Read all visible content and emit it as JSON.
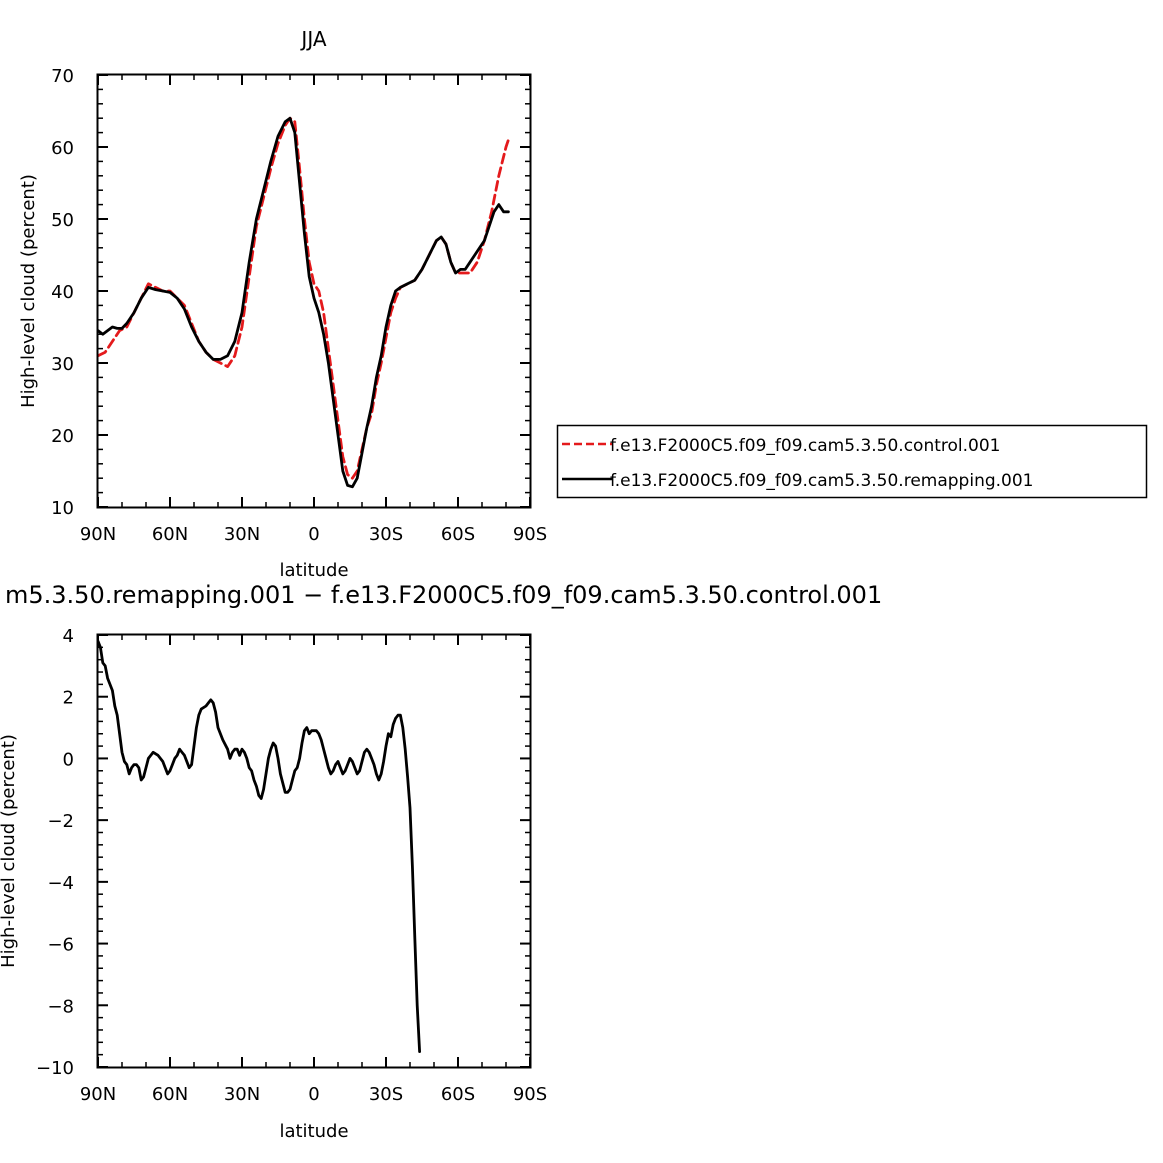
{
  "chart_data": [
    {
      "type": "line",
      "title": "JJA",
      "xlabel": "latitude",
      "ylabel": "High-level cloud (percent)",
      "xlim": [
        90,
        -90
      ],
      "ylim": [
        10,
        70
      ],
      "xticks": [
        90,
        60,
        30,
        0,
        -30,
        -60,
        -90
      ],
      "xtick_labels": [
        "90N",
        "60N",
        "30N",
        "0",
        "30S",
        "60S",
        "90S"
      ],
      "yticks": [
        10,
        20,
        30,
        40,
        50,
        60,
        70
      ],
      "ytick_labels": [
        "10",
        "20",
        "30",
        "40",
        "50",
        "60",
        "70"
      ],
      "legend_position": "right",
      "series": [
        {
          "name": "f.e13.F2000C5.f09_f09.cam5.3.50.control.001",
          "color": "#e41a1c",
          "dash": "dashed",
          "points": [
            [
              90,
              31
            ],
            [
              87,
              31.5
            ],
            [
              84,
              33
            ],
            [
              81,
              34.5
            ],
            [
              78,
              35
            ],
            [
              75,
              37
            ],
            [
              72,
              39
            ],
            [
              69,
              41
            ],
            [
              66,
              40.5
            ],
            [
              63,
              40
            ],
            [
              60,
              40
            ],
            [
              57,
              39
            ],
            [
              54,
              38
            ],
            [
              51,
              35.5
            ],
            [
              48,
              33
            ],
            [
              45,
              31.5
            ],
            [
              42,
              30.5
            ],
            [
              39,
              30
            ],
            [
              36,
              29.5
            ],
            [
              33,
              31
            ],
            [
              30,
              35
            ],
            [
              27,
              42
            ],
            [
              24,
              49
            ],
            [
              21,
              53
            ],
            [
              18,
              57
            ],
            [
              15,
              60.5
            ],
            [
              12,
              63
            ],
            [
              10,
              64
            ],
            [
              8,
              63.5
            ],
            [
              6,
              57
            ],
            [
              4,
              50
            ],
            [
              2,
              44
            ],
            [
              0,
              41
            ],
            [
              -2,
              40
            ],
            [
              -4,
              37
            ],
            [
              -6,
              32
            ],
            [
              -8,
              27
            ],
            [
              -10,
              22
            ],
            [
              -12,
              17
            ],
            [
              -14,
              14.5
            ],
            [
              -16,
              14
            ],
            [
              -18,
              15
            ],
            [
              -20,
              18
            ],
            [
              -22,
              21
            ],
            [
              -24,
              23
            ],
            [
              -26,
              27
            ],
            [
              -28,
              30
            ],
            [
              -30,
              33.5
            ],
            [
              -32,
              37
            ],
            [
              -34,
              39
            ],
            [
              -36,
              40.5
            ],
            [
              -39,
              41
            ],
            [
              -42,
              41.5
            ],
            [
              -45,
              43
            ],
            [
              -48,
              45
            ],
            [
              -51,
              47
            ],
            [
              -53,
              47.5
            ],
            [
              -55,
              46.5
            ],
            [
              -57,
              44
            ],
            [
              -59,
              42.5
            ],
            [
              -62,
              42.5
            ],
            [
              -65,
              42.5
            ],
            [
              -68,
              44
            ],
            [
              -71,
              47
            ],
            [
              -74,
              51
            ],
            [
              -77,
              56
            ],
            [
              -80,
              60
            ],
            [
              -81,
              61
            ]
          ]
        },
        {
          "name": "f.e13.F2000C5.f09_f09.cam5.3.50.remapping.001",
          "color": "#000000",
          "dash": "solid",
          "points": [
            [
              90,
              34.5
            ],
            [
              88,
              34
            ],
            [
              86,
              34.5
            ],
            [
              84,
              35
            ],
            [
              82,
              34.8
            ],
            [
              80,
              34.8
            ],
            [
              78,
              35.5
            ],
            [
              75,
              37
            ],
            [
              72,
              39
            ],
            [
              69,
              40.5
            ],
            [
              66,
              40.2
            ],
            [
              63,
              40
            ],
            [
              60,
              39.8
            ],
            [
              57,
              39
            ],
            [
              54,
              37.5
            ],
            [
              51,
              35
            ],
            [
              48,
              33
            ],
            [
              45,
              31.5
            ],
            [
              42,
              30.5
            ],
            [
              39,
              30.5
            ],
            [
              36,
              31
            ],
            [
              33,
              33
            ],
            [
              30,
              37
            ],
            [
              27,
              44
            ],
            [
              24,
              50
            ],
            [
              21,
              54
            ],
            [
              18,
              58
            ],
            [
              15,
              61.5
            ],
            [
              12,
              63.5
            ],
            [
              10,
              64
            ],
            [
              8,
              62
            ],
            [
              6,
              55
            ],
            [
              4,
              48
            ],
            [
              2,
              42
            ],
            [
              0,
              39
            ],
            [
              -2,
              37
            ],
            [
              -4,
              34
            ],
            [
              -6,
              30
            ],
            [
              -8,
              25
            ],
            [
              -10,
              20
            ],
            [
              -12,
              15
            ],
            [
              -14,
              13
            ],
            [
              -16,
              12.8
            ],
            [
              -18,
              14
            ],
            [
              -20,
              17.5
            ],
            [
              -22,
              21
            ],
            [
              -24,
              24
            ],
            [
              -26,
              28
            ],
            [
              -28,
              31
            ],
            [
              -30,
              35
            ],
            [
              -32,
              38
            ],
            [
              -34,
              40
            ],
            [
              -36,
              40.5
            ],
            [
              -39,
              41
            ],
            [
              -42,
              41.5
            ],
            [
              -45,
              43
            ],
            [
              -48,
              45
            ],
            [
              -51,
              47
            ],
            [
              -53,
              47.5
            ],
            [
              -55,
              46.5
            ],
            [
              -57,
              44
            ],
            [
              -59,
              42.5
            ],
            [
              -61,
              43
            ],
            [
              -63,
              43
            ],
            [
              -65,
              44
            ],
            [
              -67,
              45
            ],
            [
              -69,
              46
            ],
            [
              -71,
              47
            ],
            [
              -73,
              49
            ],
            [
              -75,
              51
            ],
            [
              -77,
              52
            ],
            [
              -79,
              51
            ],
            [
              -81,
              51
            ]
          ]
        }
      ]
    },
    {
      "type": "line",
      "title": "m5.3.50.remapping.001 − f.e13.F2000C5.f09_f09.cam5.3.50.control.001",
      "xlabel": "latitude",
      "ylabel": "High-level cloud (percent)",
      "xlim": [
        90,
        -90
      ],
      "ylim": [
        -10,
        4
      ],
      "xticks": [
        90,
        60,
        30,
        0,
        -30,
        -60,
        -90
      ],
      "xtick_labels": [
        "90N",
        "60N",
        "30N",
        "0",
        "30S",
        "60S",
        "90S"
      ],
      "yticks": [
        -10,
        -8,
        -6,
        -4,
        -2,
        0,
        2,
        4
      ],
      "ytick_labels": [
        "−10",
        "−8",
        "−6",
        "−4",
        "−2",
        "0",
        "2",
        "4"
      ],
      "series": [
        {
          "color": "#000000",
          "dash": "solid",
          "points": [
            [
              90,
              3.8
            ],
            [
              89,
              3.6
            ],
            [
              88,
              3.1
            ],
            [
              87,
              3.0
            ],
            [
              86,
              2.6
            ],
            [
              85,
              2.4
            ],
            [
              84,
              2.2
            ],
            [
              83,
              1.7
            ],
            [
              82,
              1.4
            ],
            [
              81,
              0.8
            ],
            [
              80,
              0.2
            ],
            [
              79,
              -0.1
            ],
            [
              78,
              -0.2
            ],
            [
              77,
              -0.5
            ],
            [
              76,
              -0.3
            ],
            [
              75,
              -0.2
            ],
            [
              74,
              -0.2
            ],
            [
              73,
              -0.3
            ],
            [
              72,
              -0.7
            ],
            [
              71,
              -0.6
            ],
            [
              70,
              -0.3
            ],
            [
              69,
              0.0
            ],
            [
              68,
              0.1
            ],
            [
              67,
              0.2
            ],
            [
              65,
              0.1
            ],
            [
              63,
              -0.1
            ],
            [
              62,
              -0.3
            ],
            [
              61,
              -0.5
            ],
            [
              60,
              -0.4
            ],
            [
              59,
              -0.2
            ],
            [
              58,
              0.0
            ],
            [
              57,
              0.1
            ],
            [
              56,
              0.3
            ],
            [
              55,
              0.2
            ],
            [
              54,
              0.1
            ],
            [
              53,
              -0.1
            ],
            [
              52,
              -0.3
            ],
            [
              51,
              -0.2
            ],
            [
              50,
              0.4
            ],
            [
              49,
              1.0
            ],
            [
              48,
              1.4
            ],
            [
              47,
              1.6
            ],
            [
              45,
              1.7
            ],
            [
              44,
              1.8
            ],
            [
              43,
              1.9
            ],
            [
              42,
              1.8
            ],
            [
              41,
              1.5
            ],
            [
              40,
              1.0
            ],
            [
              38,
              0.6
            ],
            [
              36,
              0.3
            ],
            [
              35,
              0.0
            ],
            [
              34,
              0.2
            ],
            [
              33,
              0.3
            ],
            [
              32,
              0.3
            ],
            [
              31,
              0.1
            ],
            [
              30,
              0.3
            ],
            [
              29,
              0.2
            ],
            [
              28,
              0.0
            ],
            [
              27,
              -0.3
            ],
            [
              26,
              -0.4
            ],
            [
              25,
              -0.7
            ],
            [
              24,
              -0.9
            ],
            [
              23,
              -1.2
            ],
            [
              22,
              -1.3
            ],
            [
              21,
              -1.0
            ],
            [
              20,
              -0.5
            ],
            [
              19,
              0.0
            ],
            [
              18,
              0.3
            ],
            [
              17,
              0.5
            ],
            [
              16,
              0.4
            ],
            [
              15,
              0.0
            ],
            [
              14,
              -0.5
            ],
            [
              13,
              -0.8
            ],
            [
              12,
              -1.1
            ],
            [
              11,
              -1.1
            ],
            [
              10,
              -1.0
            ],
            [
              9,
              -0.7
            ],
            [
              8,
              -0.4
            ],
            [
              7,
              -0.3
            ],
            [
              6,
              0.0
            ],
            [
              5,
              0.5
            ],
            [
              4,
              0.9
            ],
            [
              3,
              1.0
            ],
            [
              2,
              0.8
            ],
            [
              1,
              0.9
            ],
            [
              0,
              0.9
            ],
            [
              -1,
              0.9
            ],
            [
              -2,
              0.8
            ],
            [
              -3,
              0.6
            ],
            [
              -4,
              0.3
            ],
            [
              -5,
              0.0
            ],
            [
              -6,
              -0.3
            ],
            [
              -7,
              -0.5
            ],
            [
              -8,
              -0.4
            ],
            [
              -9,
              -0.2
            ],
            [
              -10,
              -0.1
            ],
            [
              -11,
              -0.3
            ],
            [
              -12,
              -0.5
            ],
            [
              -13,
              -0.4
            ],
            [
              -14,
              -0.2
            ],
            [
              -15,
              0.0
            ],
            [
              -16,
              -0.1
            ],
            [
              -17,
              -0.3
            ],
            [
              -18,
              -0.5
            ],
            [
              -19,
              -0.4
            ],
            [
              -20,
              -0.1
            ],
            [
              -21,
              0.2
            ],
            [
              -22,
              0.3
            ],
            [
              -23,
              0.2
            ],
            [
              -24,
              0.0
            ],
            [
              -25,
              -0.2
            ],
            [
              -26,
              -0.5
            ],
            [
              -27,
              -0.7
            ],
            [
              -28,
              -0.5
            ],
            [
              -29,
              -0.1
            ],
            [
              -30,
              0.4
            ],
            [
              -31,
              0.8
            ],
            [
              -32,
              0.7
            ],
            [
              -33,
              1.1
            ],
            [
              -34,
              1.3
            ],
            [
              -35,
              1.4
            ],
            [
              -36,
              1.4
            ],
            [
              -37,
              1.0
            ],
            [
              -38,
              0.3
            ],
            [
              -39,
              -0.6
            ],
            [
              -40,
              -1.6
            ],
            [
              -41,
              -3.5
            ],
            [
              -42,
              -5.8
            ],
            [
              -43,
              -8.0
            ],
            [
              -44,
              -9.5
            ]
          ]
        }
      ]
    }
  ]
}
